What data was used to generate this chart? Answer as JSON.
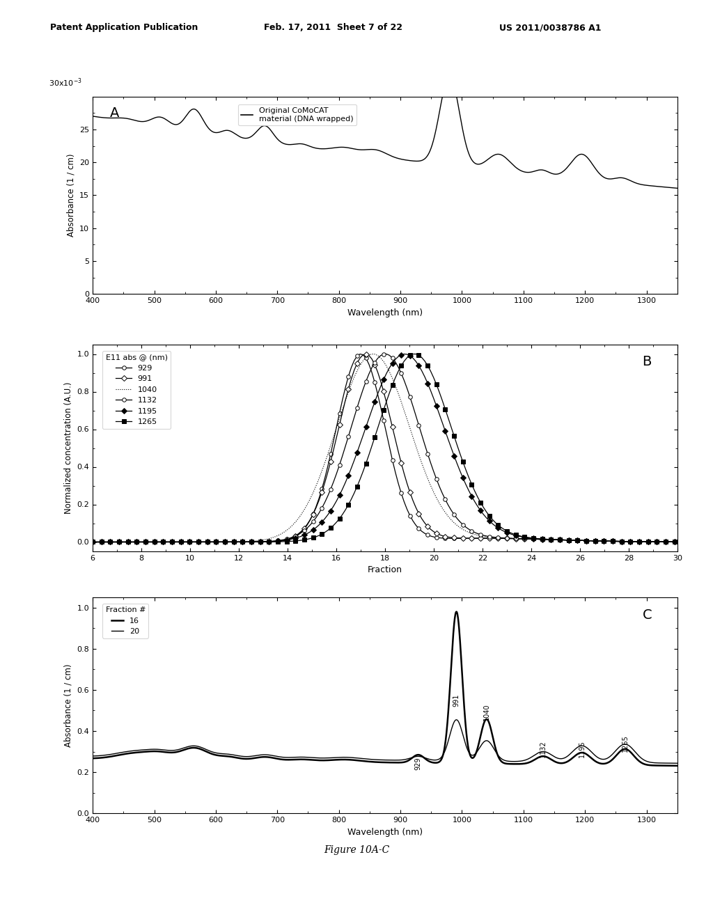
{
  "header_left": "Patent Application Publication",
  "header_mid": "Feb. 17, 2011  Sheet 7 of 22",
  "header_right": "US 2011/0038786 A1",
  "figure_label": "Figure 10A-C",
  "panel_A": {
    "label": "A",
    "xlabel": "Wavelength (nm)",
    "ylabel": "Absorbance (1 / cm)",
    "xlim": [
      400,
      1350
    ],
    "ylim": [
      0,
      0.03
    ],
    "xticks": [
      400,
      500,
      600,
      700,
      800,
      900,
      1000,
      1100,
      1200,
      1300
    ],
    "yticks": [
      0,
      0.005,
      0.01,
      0.015,
      0.02,
      0.025
    ],
    "ytick_labels": [
      "0",
      "5",
      "10",
      "15",
      "20",
      "25"
    ],
    "legend_label": "Original CoMoCAT\nmaterial (DNA wrapped)"
  },
  "panel_B": {
    "label": "B",
    "xlabel": "Fraction",
    "ylabel": "Normalized concentration (A.U.)",
    "xlim": [
      6,
      30
    ],
    "ylim": [
      -0.05,
      1.05
    ],
    "xticks": [
      6,
      8,
      10,
      12,
      14,
      16,
      18,
      20,
      22,
      24,
      26,
      28,
      30
    ],
    "yticks": [
      0.0,
      0.2,
      0.4,
      0.6,
      0.8,
      1.0
    ],
    "series_labels": [
      "929",
      "991",
      "1040",
      "1132",
      "1195",
      "1265"
    ],
    "legend_title": "E11 abs @ (nm)"
  },
  "panel_C": {
    "label": "C",
    "xlabel": "Wavelength (nm)",
    "ylabel": "Absorbance (1 / cm)",
    "xlim": [
      400,
      1350
    ],
    "ylim": [
      0,
      1.05
    ],
    "xticks": [
      400,
      500,
      600,
      700,
      800,
      900,
      1000,
      1100,
      1200,
      1300
    ],
    "yticks": [
      0.0,
      0.2,
      0.4,
      0.6,
      0.8,
      1.0
    ],
    "legend_labels": [
      "16",
      "20"
    ],
    "legend_title": "Fraction #",
    "peak_labels": [
      "929",
      "991",
      "1040",
      "1132",
      "1195",
      "1265"
    ],
    "peak_positions": [
      929,
      991,
      1040,
      1132,
      1195,
      1265
    ]
  },
  "bg_color": "#ffffff",
  "line_color": "#000000"
}
